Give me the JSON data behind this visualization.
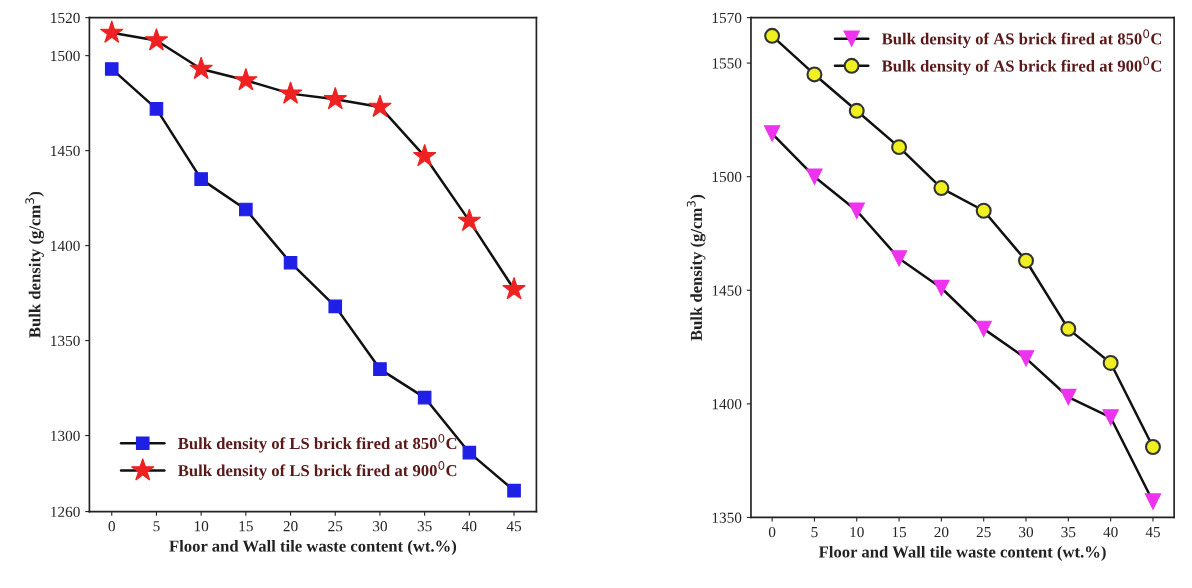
{
  "chart_data": [
    {
      "type": "line",
      "xlabel": "Floor and Wall tile waste content (wt.%)",
      "ylabel": "Bulk density (g/cm$^{3}$)",
      "x": [
        0,
        5,
        10,
        15,
        20,
        25,
        30,
        35,
        40,
        45
      ],
      "xlim": [
        -2.5,
        47.5
      ],
      "xticks": [
        0,
        5,
        10,
        15,
        20,
        25,
        30,
        35,
        40,
        45
      ],
      "ylim": [
        1260,
        1520
      ],
      "yticks": [
        1260,
        1300,
        1350,
        1400,
        1450,
        1500,
        1520
      ],
      "legend": "bottom left",
      "grid": false,
      "series": [
        {
          "name": "Bulk density of LS brick fired at 850$^{0}$C",
          "color": "#1f1fe6",
          "marker": "square",
          "values": [
            1493,
            1472,
            1435,
            1419,
            1391,
            1368,
            1335,
            1320,
            1291,
            1271
          ]
        },
        {
          "name": "Bulk density of LS brick fired at 900$^{0}$C",
          "color": "#ee2222",
          "marker": "star",
          "values": [
            1512,
            1508,
            1493,
            1487,
            1480,
            1477,
            1473,
            1447,
            1413,
            1377
          ]
        }
      ]
    },
    {
      "type": "line",
      "xlabel": "Floor and Wall tile waste content (wt.%)",
      "ylabel": "Bulk density (g/cm$^{3}$)",
      "x": [
        0,
        5,
        10,
        15,
        20,
        25,
        30,
        35,
        40,
        45
      ],
      "xlim": [
        -2.5,
        47.5
      ],
      "xticks": [
        0,
        5,
        10,
        15,
        20,
        25,
        30,
        35,
        40,
        45
      ],
      "ylim": [
        1350,
        1570
      ],
      "yticks": [
        1350,
        1400,
        1450,
        1500,
        1550,
        1570
      ],
      "legend": "top right",
      "grid": false,
      "series": [
        {
          "name": "Bulk density of AS brick fired at 850$^{0}$C",
          "color": "#ee33ee",
          "marker": "triangle",
          "values": [
            1519,
            1500,
            1485,
            1464,
            1451,
            1433,
            1420,
            1403,
            1394,
            1357
          ]
        },
        {
          "name": "Bulk density of AS brick fired at 900$^{0}$C",
          "color": "#f0f020",
          "marker": "circle",
          "values": [
            1562,
            1545,
            1529,
            1513,
            1495,
            1485,
            1463,
            1433,
            1418,
            1381
          ]
        }
      ]
    }
  ]
}
